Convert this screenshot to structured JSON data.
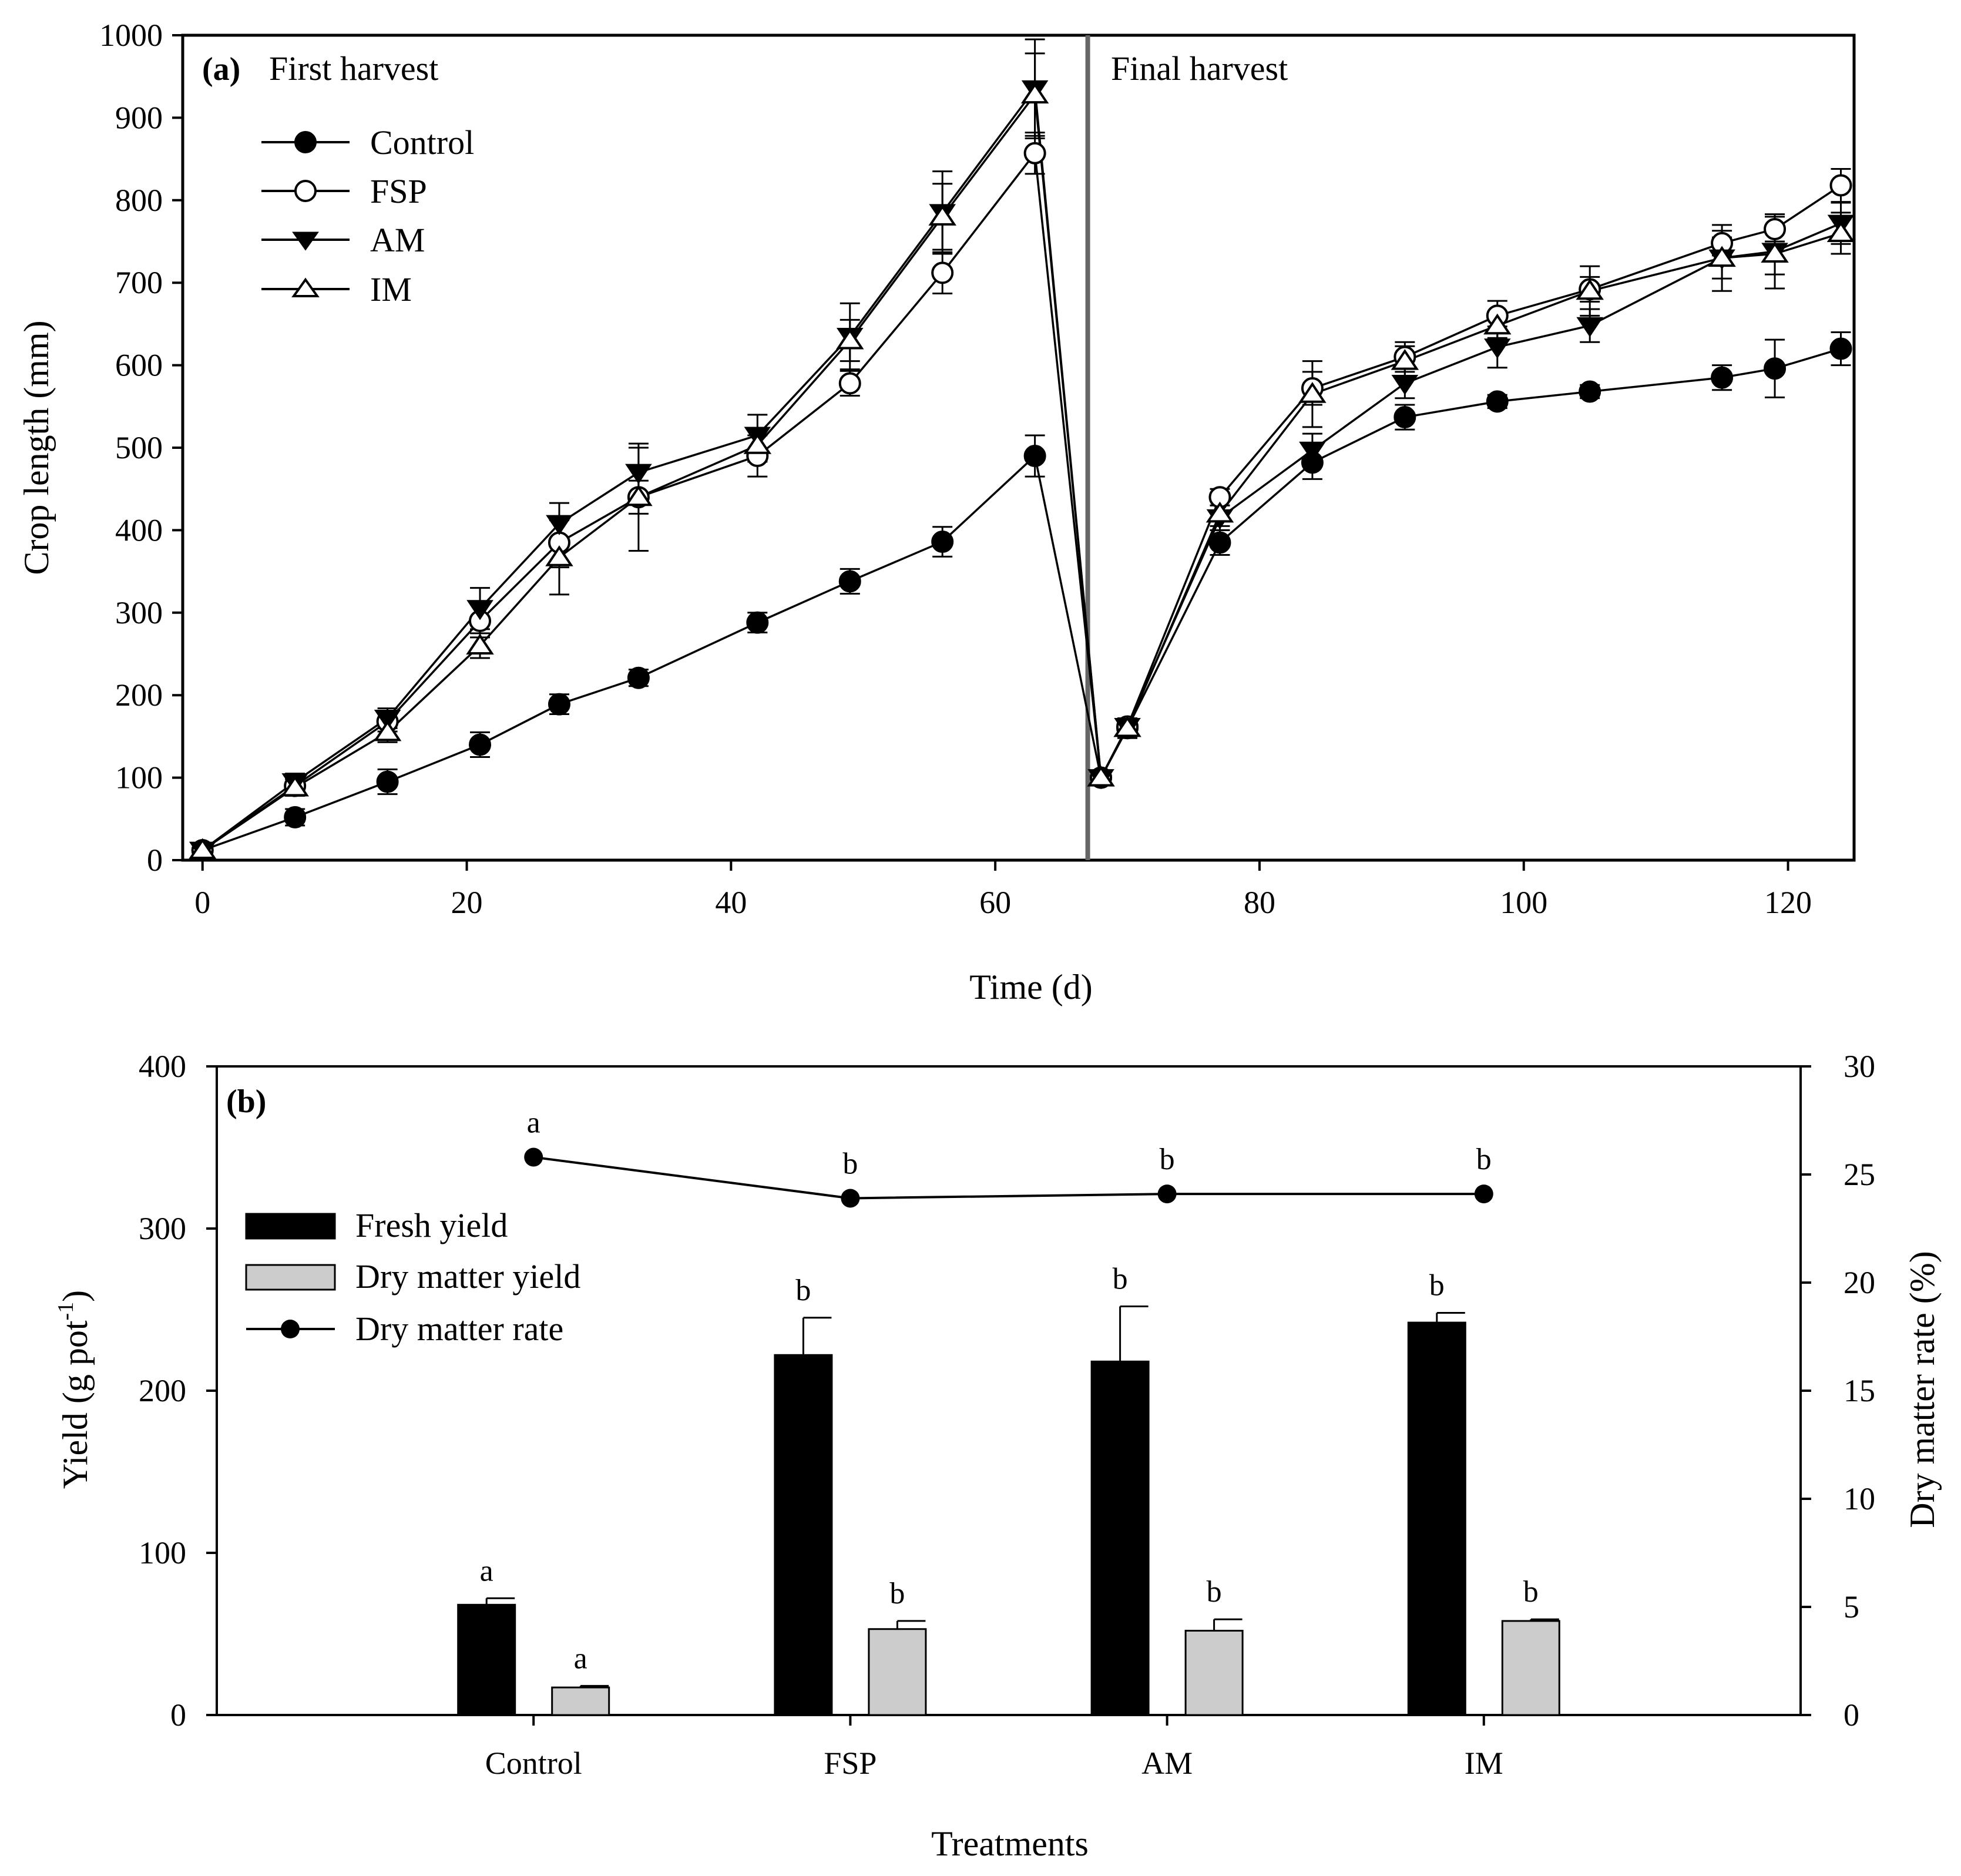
{
  "chart_data": [
    {
      "type": "line",
      "panel_label": "(a)",
      "annotations": [
        "First harvest",
        "Final harvest"
      ],
      "xlabel": "Time (d)",
      "ylabel": "Crop length (mm)",
      "xlim": [
        -1.5,
        125
      ],
      "ylim": [
        0,
        1000
      ],
      "xticks": [
        0,
        20,
        40,
        60,
        80,
        100,
        120
      ],
      "yticks": [
        0,
        100,
        200,
        300,
        400,
        500,
        600,
        700,
        800,
        900,
        1000
      ],
      "harvest_divider_x": 67,
      "legend_position": "top-left",
      "series": [
        {
          "name": "Control",
          "marker": "filled-circle",
          "x": [
            0,
            7,
            14,
            21,
            27,
            33,
            42,
            49,
            56,
            63,
            68,
            70,
            77,
            84,
            91,
            98,
            105,
            115,
            119,
            124
          ],
          "y": [
            12,
            52,
            95,
            140,
            189,
            221,
            288,
            338,
            386,
            490,
            100,
            160,
            385,
            482,
            537,
            556,
            568,
            585,
            596,
            620
          ],
          "err": [
            6,
            10,
            15,
            15,
            12,
            10,
            12,
            15,
            18,
            25,
            6,
            12,
            15,
            20,
            15,
            8,
            8,
            15,
            35,
            20
          ]
        },
        {
          "name": "FSP",
          "marker": "open-circle",
          "x": [
            0,
            7,
            14,
            21,
            27,
            33,
            42,
            49,
            56,
            63,
            68,
            70,
            77,
            84,
            91,
            98,
            105,
            115,
            119,
            124
          ],
          "y": [
            12,
            90,
            168,
            290,
            385,
            440,
            490,
            578,
            712,
            857,
            100,
            162,
            440,
            572,
            610,
            660,
            692,
            748,
            765,
            818
          ],
          "err": [
            6,
            10,
            12,
            20,
            30,
            20,
            25,
            15,
            25,
            25,
            5,
            10,
            10,
            20,
            18,
            18,
            15,
            15,
            15,
            20
          ]
        },
        {
          "name": "AM",
          "marker": "filled-triangle-down",
          "x": [
            0,
            7,
            14,
            21,
            27,
            33,
            42,
            49,
            56,
            63,
            68,
            70,
            77,
            84,
            91,
            98,
            105,
            115,
            119,
            124
          ],
          "y": [
            12,
            95,
            172,
            305,
            408,
            470,
            515,
            635,
            785,
            935,
            100,
            162,
            415,
            497,
            578,
            622,
            648,
            730,
            738,
            772
          ],
          "err": [
            6,
            10,
            12,
            25,
            25,
            30,
            25,
            40,
            50,
            60,
            5,
            10,
            15,
            20,
            18,
            25,
            20,
            40,
            45,
            25
          ]
        },
        {
          "name": "IM",
          "marker": "open-triangle-up",
          "x": [
            0,
            7,
            14,
            21,
            27,
            33,
            42,
            49,
            56,
            63,
            68,
            70,
            77,
            84,
            91,
            98,
            105,
            115,
            119,
            124
          ],
          "y": [
            12,
            88,
            155,
            260,
            367,
            440,
            503,
            630,
            780,
            928,
            100,
            160,
            420,
            565,
            605,
            648,
            690,
            730,
            735,
            760
          ],
          "err": [
            6,
            10,
            12,
            15,
            45,
            65,
            20,
            25,
            40,
            50,
            5,
            10,
            15,
            40,
            18,
            15,
            30,
            25,
            25,
            25
          ]
        }
      ]
    },
    {
      "type": "bar",
      "panel_label": "(b)",
      "xlabel": "Treatments",
      "ylabel": "Yield (g pot",
      "ylabel_superscript": "-1",
      "ylabel_close": ")",
      "y2label": "Dry matter rate (%)",
      "ylim": [
        0,
        400
      ],
      "y2lim": [
        0,
        30
      ],
      "yticks": [
        0,
        100,
        200,
        300,
        400
      ],
      "y2ticks": [
        0,
        5,
        10,
        15,
        20,
        25,
        30
      ],
      "categories": [
        "Control",
        "FSP",
        "AM",
        "IM"
      ],
      "legend_position": "upper-left",
      "series": [
        {
          "name": "Fresh yield",
          "kind": "bar",
          "color": "#000000",
          "values": [
            68,
            222,
            218,
            242
          ],
          "err": [
            4,
            23,
            34,
            6
          ],
          "letters": [
            "a",
            "b",
            "b",
            "b"
          ]
        },
        {
          "name": "Dry matter yield",
          "kind": "bar",
          "color": "#cccccc",
          "values": [
            17,
            53,
            52,
            58
          ],
          "err": [
            1,
            5,
            7,
            1
          ],
          "letters": [
            "a",
            "b",
            "b",
            "b"
          ]
        },
        {
          "name": "Dry matter rate",
          "kind": "line",
          "axis": "right",
          "marker": "filled-circle",
          "values": [
            25.8,
            23.9,
            24.1,
            24.1
          ],
          "letters": [
            "a",
            "b",
            "b",
            "b"
          ]
        }
      ]
    }
  ]
}
